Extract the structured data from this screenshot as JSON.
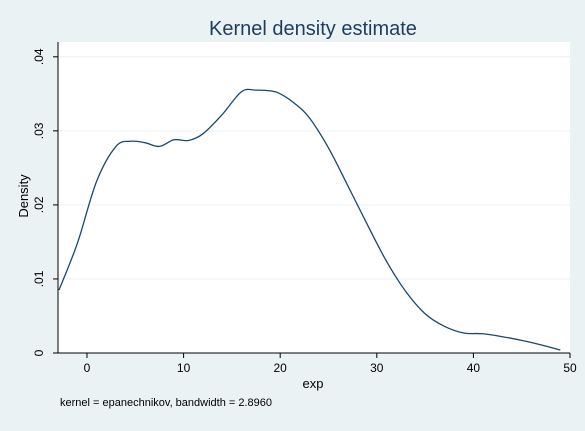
{
  "chart_data": {
    "type": "line",
    "title": "Kernel density estimate",
    "xlabel": "exp",
    "ylabel": "Density",
    "note": "kernel = epanechnikov, bandwidth = 2.8960",
    "xlim": [
      -3,
      50
    ],
    "ylim": [
      0,
      0.042
    ],
    "x_ticks": [
      0,
      10,
      20,
      30,
      40,
      50
    ],
    "x_tick_labels": [
      "0",
      "10",
      "20",
      "30",
      "40",
      "50"
    ],
    "y_ticks": [
      0,
      0.01,
      0.02,
      0.03,
      0.04
    ],
    "y_tick_labels": [
      "0",
      ".01",
      ".02",
      ".03",
      ".04"
    ],
    "grid": true,
    "series": [
      {
        "color": "#1a476f",
        "x": [
          -2.9,
          -1,
          1,
          3,
          4.5,
          6,
          7.5,
          9,
          10.5,
          12,
          14,
          16,
          17.5,
          19,
          20,
          21.5,
          23,
          25,
          27,
          29,
          31,
          33,
          35,
          37,
          39,
          41,
          43,
          45,
          47,
          49
        ],
        "y": [
          0.0085,
          0.0148,
          0.0232,
          0.0279,
          0.0286,
          0.0284,
          0.0279,
          0.0288,
          0.0287,
          0.0296,
          0.0322,
          0.0353,
          0.0355,
          0.0354,
          0.035,
          0.0337,
          0.0318,
          0.0277,
          0.0226,
          0.0174,
          0.0124,
          0.0083,
          0.0053,
          0.0036,
          0.0027,
          0.0026,
          0.0022,
          0.0017,
          0.0011,
          0.0004
        ]
      }
    ]
  }
}
